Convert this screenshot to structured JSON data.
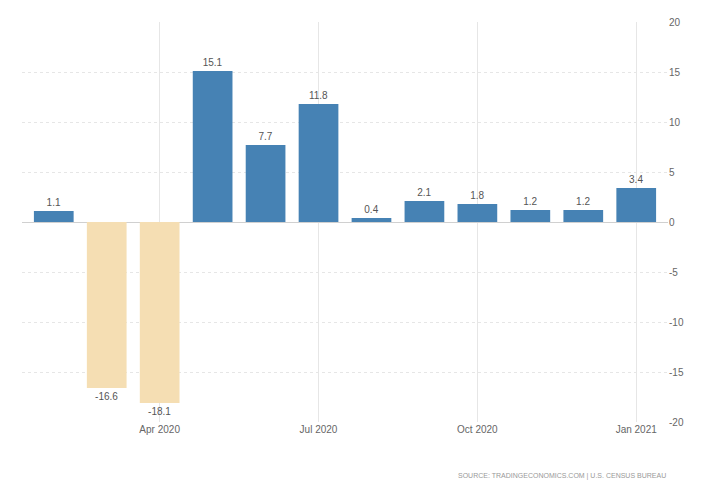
{
  "chart_data": {
    "type": "bar",
    "categories": [
      null,
      null,
      "Apr 2020",
      null,
      null,
      "Jul 2020",
      null,
      null,
      "Oct 2020",
      null,
      null,
      "Jan 2021"
    ],
    "values": [
      1.1,
      -16.6,
      -18.1,
      15.1,
      7.7,
      11.8,
      0.4,
      2.1,
      1.8,
      1.2,
      1.2,
      3.4
    ],
    "colors": [
      "#4682b4",
      "#f5deb3",
      "#f5deb3",
      "#4682b4",
      "#4682b4",
      "#4682b4",
      "#4682b4",
      "#4682b4",
      "#4682b4",
      "#4682b4",
      "#4682b4",
      "#4682b4"
    ],
    "ylim": [
      -20,
      20
    ],
    "yticks": [
      -20,
      -15,
      -10,
      -5,
      0,
      5,
      10,
      15,
      20
    ],
    "grid": true,
    "data_labels": true,
    "source": "SOURCE: TRADINGECONOMICS.COM | U.S. CENSUS BUREAU"
  }
}
